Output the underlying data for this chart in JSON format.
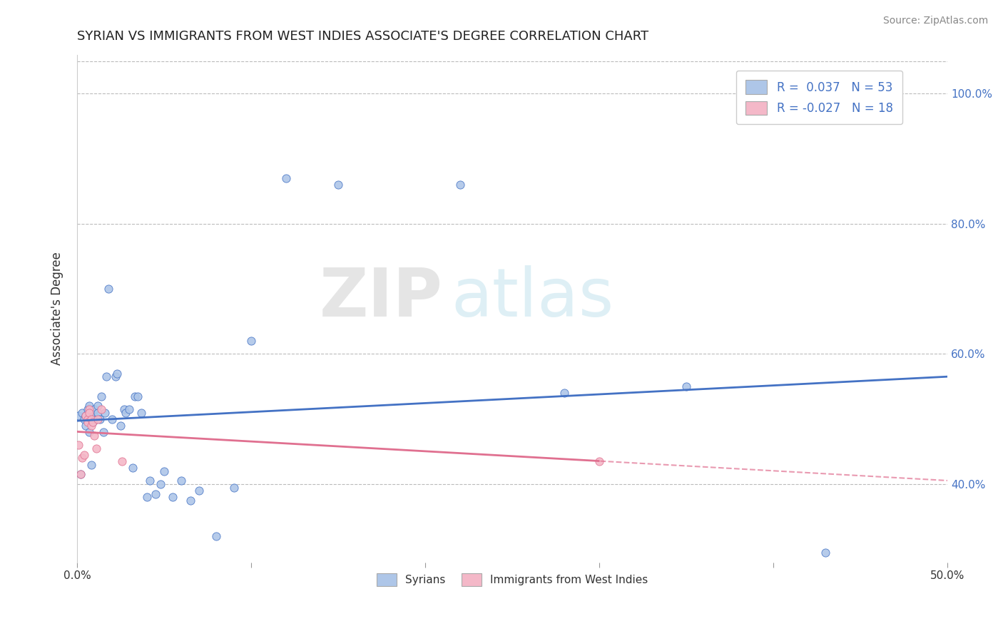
{
  "title": "SYRIAN VS IMMIGRANTS FROM WEST INDIES ASSOCIATE'S DEGREE CORRELATION CHART",
  "source": "Source: ZipAtlas.com",
  "ylabel": "Associate's Degree",
  "watermark_zip": "ZIP",
  "watermark_atlas": "atlas",
  "xlim": [
    0.0,
    0.5
  ],
  "ylim": [
    0.28,
    1.06
  ],
  "ytick_positions": [
    0.4,
    0.6,
    0.8,
    1.0
  ],
  "ytick_labels": [
    "40.0%",
    "60.0%",
    "80.0%",
    "100.0%"
  ],
  "xtick_positions": [
    0.0,
    0.1,
    0.2,
    0.3,
    0.4,
    0.5
  ],
  "xtick_labels": [
    "0.0%",
    "",
    "",
    "",
    "",
    "50.0%"
  ],
  "legend_label1": "Syrians",
  "legend_label2": "Immigrants from West Indies",
  "R1": 0.037,
  "N1": 53,
  "R2": -0.027,
  "N2": 18,
  "color1": "#aec6e8",
  "color2": "#f4b8c8",
  "line_color1": "#4472c4",
  "line_color2": "#e07090",
  "background_color": "#ffffff",
  "title_fontsize": 13,
  "syrians_x": [
    0.001,
    0.002,
    0.003,
    0.004,
    0.005,
    0.005,
    0.006,
    0.007,
    0.007,
    0.008,
    0.008,
    0.009,
    0.009,
    0.01,
    0.01,
    0.011,
    0.012,
    0.012,
    0.013,
    0.014,
    0.015,
    0.016,
    0.017,
    0.018,
    0.02,
    0.022,
    0.023,
    0.025,
    0.027,
    0.028,
    0.03,
    0.032,
    0.033,
    0.035,
    0.037,
    0.04,
    0.042,
    0.045,
    0.048,
    0.05,
    0.055,
    0.06,
    0.065,
    0.07,
    0.08,
    0.09,
    0.1,
    0.12,
    0.15,
    0.22,
    0.28,
    0.35,
    0.43
  ],
  "syrians_y": [
    0.505,
    0.415,
    0.51,
    0.5,
    0.505,
    0.49,
    0.515,
    0.48,
    0.52,
    0.43,
    0.51,
    0.505,
    0.495,
    0.505,
    0.515,
    0.5,
    0.52,
    0.51,
    0.5,
    0.535,
    0.48,
    0.51,
    0.565,
    0.7,
    0.5,
    0.565,
    0.57,
    0.49,
    0.515,
    0.51,
    0.515,
    0.425,
    0.535,
    0.535,
    0.51,
    0.38,
    0.405,
    0.385,
    0.4,
    0.42,
    0.38,
    0.405,
    0.375,
    0.39,
    0.32,
    0.395,
    0.62,
    0.87,
    0.86,
    0.86,
    0.54,
    0.55,
    0.295
  ],
  "west_indies_x": [
    0.001,
    0.002,
    0.003,
    0.004,
    0.005,
    0.006,
    0.006,
    0.007,
    0.007,
    0.008,
    0.008,
    0.009,
    0.01,
    0.011,
    0.012,
    0.014,
    0.026,
    0.3
  ],
  "west_indies_y": [
    0.46,
    0.415,
    0.44,
    0.445,
    0.505,
    0.5,
    0.495,
    0.515,
    0.51,
    0.49,
    0.5,
    0.495,
    0.475,
    0.455,
    0.5,
    0.515,
    0.435,
    0.435
  ],
  "pink_line_solid_end": 0.3,
  "pink_line_dash_start": 0.3
}
